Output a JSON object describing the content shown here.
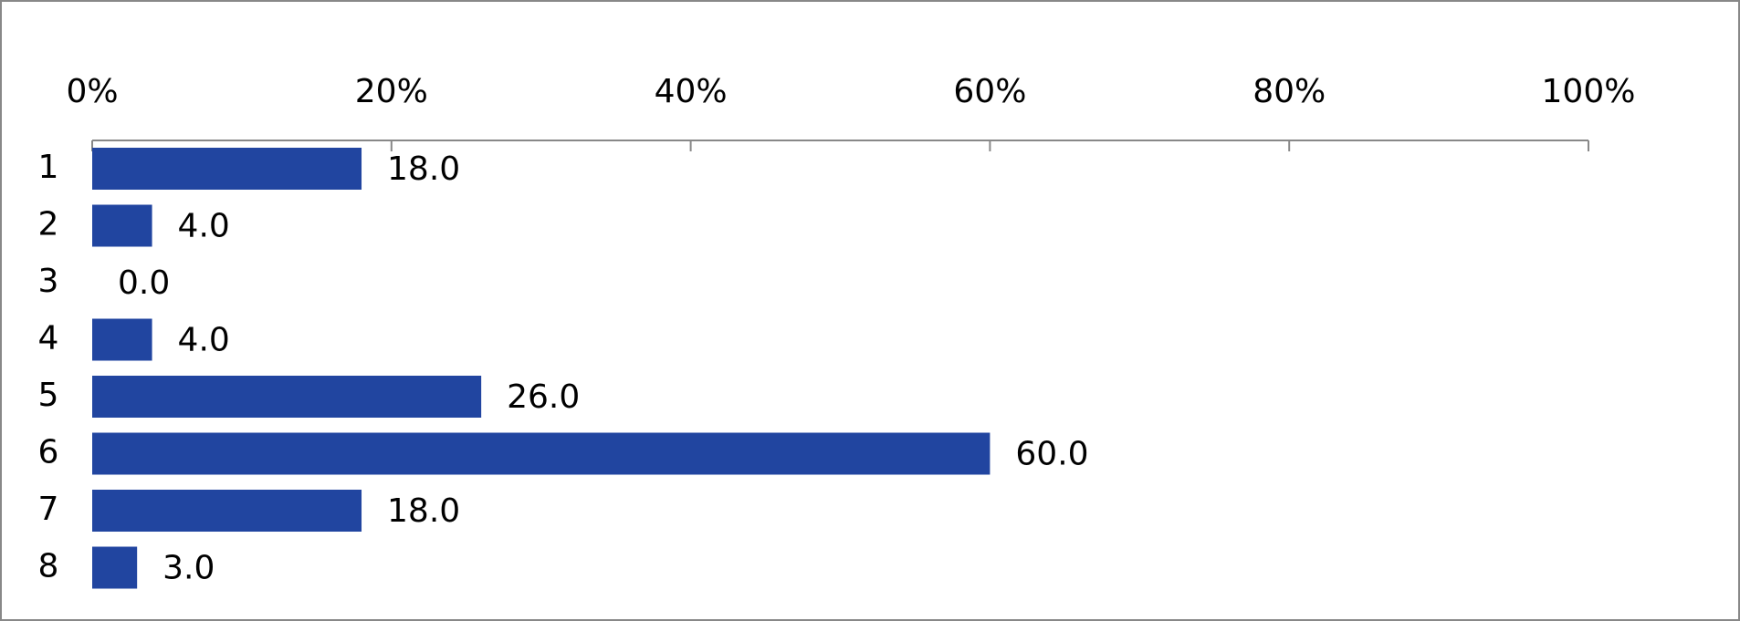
{
  "chart_data": {
    "type": "bar",
    "orientation": "horizontal",
    "categories": [
      "1",
      "2",
      "3",
      "4",
      "5",
      "6",
      "7",
      "8"
    ],
    "values": [
      18,
      4,
      0,
      4,
      26,
      60,
      18,
      3
    ],
    "value_labels": [
      "18.0",
      "4.0",
      "0.0",
      "4.0",
      "26.0",
      "60.0",
      "18.0",
      "3.0"
    ],
    "color": "#2145a0",
    "xlim": [
      0,
      100
    ],
    "xticks": [
      {
        "value": 0,
        "label": "0%"
      },
      {
        "value": 20,
        "label": "20%"
      },
      {
        "value": 40,
        "label": "40%"
      },
      {
        "value": 60,
        "label": "60%"
      },
      {
        "value": 80,
        "label": "80%"
      },
      {
        "value": 100,
        "label": "100%"
      }
    ],
    "grid": false
  }
}
